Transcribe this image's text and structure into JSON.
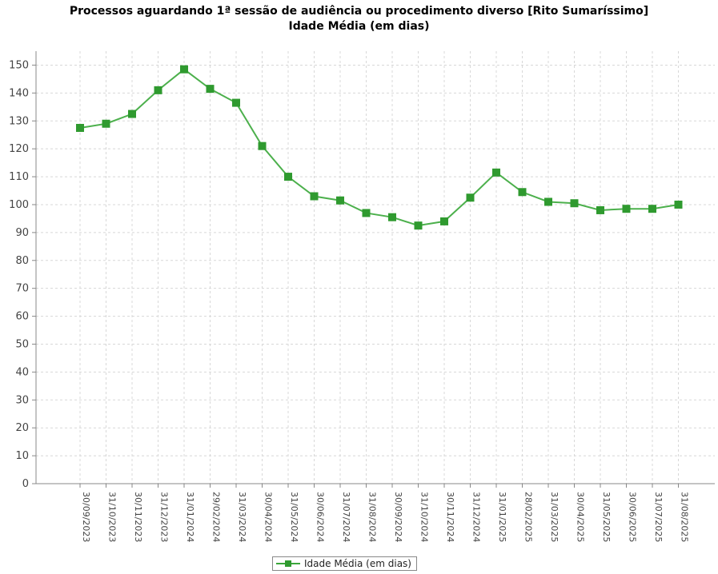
{
  "chart_data": {
    "type": "line",
    "title": "Processos aguardando 1ª sessão de audiência ou procedimento diverso [Rito Sumaríssimo]",
    "subtitle": "Idade Média (em dias)",
    "xlabel": "",
    "ylabel": "",
    "ylim": [
      0,
      155
    ],
    "yticks": [
      0,
      10,
      20,
      30,
      40,
      50,
      60,
      70,
      80,
      90,
      100,
      110,
      120,
      130,
      140,
      150
    ],
    "grid": true,
    "legend_position": "bottom",
    "categories": [
      "30/09/2023",
      "31/10/2023",
      "30/11/2023",
      "31/12/2023",
      "31/01/2024",
      "29/02/2024",
      "31/03/2024",
      "30/04/2024",
      "31/05/2024",
      "30/06/2024",
      "31/07/2024",
      "31/08/2024",
      "30/09/2024",
      "31/10/2024",
      "30/11/2024",
      "31/12/2024",
      "31/01/2025",
      "28/02/2025",
      "31/03/2025",
      "30/04/2025",
      "31/05/2025",
      "30/06/2025",
      "31/07/2025",
      "31/08/2025"
    ],
    "series": [
      {
        "name": "Idade Média (em dias)",
        "color": "#2f9a2f",
        "values": [
          127.5,
          129,
          132.5,
          141,
          148.5,
          141.5,
          136.5,
          121,
          110,
          103,
          101.5,
          97,
          95.5,
          92.5,
          94,
          102.5,
          111.5,
          104.5,
          101,
          100.5,
          98,
          98.5,
          98.5,
          100
        ]
      }
    ]
  }
}
